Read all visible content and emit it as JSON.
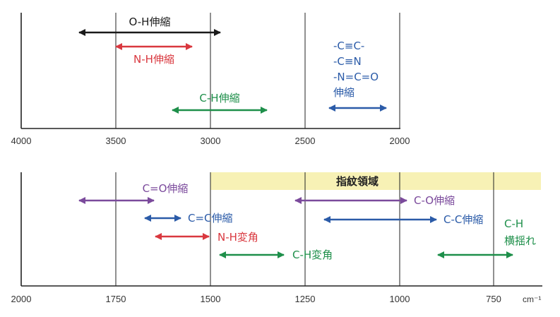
{
  "colors": {
    "black": "#1a1a1a",
    "red": "#d9383f",
    "green": "#1e8f4a",
    "blue": "#2b5ba8",
    "purple": "#7b4a9c",
    "band": "#f7f1b5",
    "axis": "#222222",
    "grid": "#222222"
  },
  "top_chart": {
    "ticks": [
      "4000",
      "3500",
      "3000",
      "2500",
      "2000"
    ],
    "arrows": [
      {
        "label": "O-H伸縮",
        "color": "black",
        "from": 3700,
        "to": 2950
      },
      {
        "label": "N-H伸縮",
        "color": "red",
        "from": 3500,
        "to": 3100
      },
      {
        "label": "C-H伸縮",
        "color": "green",
        "from": 3200,
        "to": 2700
      },
      {
        "label": "伸縮",
        "color": "blue",
        "from": 2350,
        "to": 2050
      }
    ],
    "blue_group_lines": [
      "-C≡C-",
      "-C≡N",
      "-N=C=O"
    ]
  },
  "bottom_chart": {
    "ticks": [
      "2000",
      "1750",
      "1500",
      "1250",
      "1000",
      "750"
    ],
    "unit": "cm⁻¹",
    "band_label": "指紋領域",
    "arrows": [
      {
        "label": "C=O伸縮",
        "color": "purple",
        "from": 1850,
        "to": 1650
      },
      {
        "label": "C=C伸縮",
        "color": "blue",
        "from": 1680,
        "to": 1590
      },
      {
        "label": "N-H変角",
        "color": "red",
        "from": 1650,
        "to": 1500
      },
      {
        "label": "C-H変角",
        "color": "green",
        "from": 1480,
        "to": 1300
      },
      {
        "label": "C-O伸縮",
        "color": "purple",
        "from": 1280,
        "to": 1000
      },
      {
        "label": "C-C伸縮",
        "color": "blue",
        "from": 1200,
        "to": 900
      },
      {
        "label": "C-H",
        "color": "green",
        "from": 900,
        "to": 700
      },
      {
        "label": "横揺れ",
        "color": "green",
        "from": 900,
        "to": 700
      }
    ]
  }
}
